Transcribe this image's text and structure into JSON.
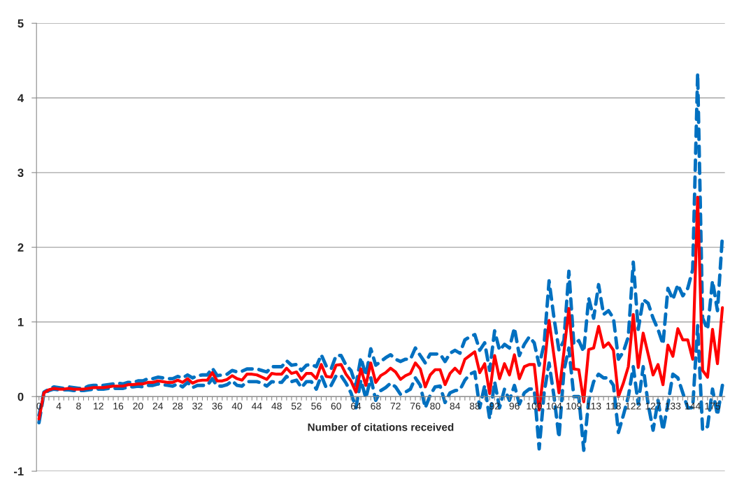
{
  "chart_data": {
    "type": "line",
    "xlabel": "Number of citations received",
    "categories": [
      "0",
      null,
      null,
      null,
      "4",
      null,
      null,
      null,
      "8",
      null,
      null,
      null,
      "12",
      null,
      null,
      null,
      "16",
      null,
      null,
      null,
      "20",
      null,
      null,
      null,
      "24",
      null,
      null,
      null,
      "28",
      null,
      null,
      null,
      "32",
      null,
      null,
      null,
      "36",
      null,
      null,
      null,
      "40",
      null,
      null,
      null,
      "44",
      null,
      null,
      null,
      "48",
      null,
      null,
      null,
      "52",
      null,
      null,
      null,
      "56",
      null,
      null,
      null,
      "60",
      null,
      null,
      null,
      "64",
      null,
      null,
      null,
      "68",
      null,
      null,
      null,
      "72",
      null,
      null,
      null,
      "76",
      null,
      null,
      null,
      "80",
      null,
      null,
      null,
      "84",
      null,
      null,
      null,
      "88",
      null,
      null,
      null,
      "92",
      null,
      null,
      null,
      "96",
      null,
      null,
      null,
      "100",
      null,
      null,
      null,
      "104",
      null,
      null,
      null,
      "109",
      null,
      null,
      null,
      "113",
      null,
      null,
      null,
      "118",
      null,
      null,
      null,
      "122",
      null,
      null,
      null,
      "127",
      null,
      null,
      null,
      "133",
      null,
      null,
      null,
      "144",
      null,
      null,
      null,
      "175",
      null,
      null
    ],
    "series": [
      {
        "color": "#0070c0",
        "line_style": "dashed",
        "values": [
          -0.25,
          0.06,
          0.1,
          0.13,
          0.12,
          0.11,
          0.13,
          0.12,
          0.11,
          0.11,
          0.14,
          0.15,
          0.15,
          0.15,
          0.16,
          0.17,
          0.18,
          0.17,
          0.19,
          0.19,
          0.21,
          0.21,
          0.24,
          0.24,
          0.26,
          0.25,
          0.24,
          0.24,
          0.27,
          0.25,
          0.29,
          0.25,
          0.28,
          0.29,
          0.29,
          0.38,
          0.28,
          0.29,
          0.3,
          0.35,
          0.33,
          0.34,
          0.37,
          0.37,
          0.37,
          0.35,
          0.33,
          0.4,
          0.4,
          0.4,
          0.48,
          0.42,
          0.43,
          0.35,
          0.42,
          0.43,
          0.4,
          0.56,
          0.41,
          0.37,
          0.55,
          0.55,
          0.42,
          0.35,
          0.15,
          0.52,
          0.28,
          0.64,
          0.42,
          0.47,
          0.52,
          0.56,
          0.5,
          0.47,
          0.5,
          0.5,
          0.65,
          0.55,
          0.45,
          0.57,
          0.57,
          0.57,
          0.47,
          0.58,
          0.62,
          0.58,
          0.76,
          0.8,
          0.83,
          0.62,
          0.72,
          0.35,
          0.88,
          0.62,
          0.7,
          0.65,
          0.92,
          0.55,
          0.7,
          0.8,
          0.72,
          0.42,
          0.7,
          1.55,
          1.05,
          0.62,
          0.75,
          1.68,
          0.7,
          0.75,
          0.6,
          1.32,
          1.05,
          1.5,
          1.1,
          1.15,
          1.05,
          0.5,
          0.6,
          0.8,
          1.8,
          0.9,
          1.3,
          1.25,
          1.05,
          0.9,
          0.7,
          1.45,
          1.3,
          1.5,
          1.35,
          1.45,
          1.7,
          4.33,
          1.05,
          0.9,
          1.55,
          1.15,
          2.15
        ]
      },
      {
        "color": "#0070c0",
        "line_style": "dashed",
        "values": [
          -0.35,
          0.04,
          0.08,
          0.1,
          0.09,
          0.09,
          0.09,
          0.08,
          0.08,
          0.08,
          0.09,
          0.1,
          0.1,
          0.1,
          0.11,
          0.11,
          0.11,
          0.11,
          0.13,
          0.13,
          0.14,
          0.13,
          0.15,
          0.15,
          0.17,
          0.16,
          0.15,
          0.14,
          0.17,
          0.13,
          0.19,
          0.12,
          0.15,
          0.15,
          0.15,
          0.24,
          0.14,
          0.14,
          0.16,
          0.21,
          0.15,
          0.14,
          0.2,
          0.2,
          0.2,
          0.18,
          0.14,
          0.2,
          0.19,
          0.19,
          0.27,
          0.2,
          0.22,
          0.12,
          0.2,
          0.2,
          0.1,
          0.28,
          0.12,
          0.15,
          0.28,
          0.28,
          0.18,
          0.05,
          -0.15,
          0.22,
          -0.02,
          0.25,
          -0.05,
          0.08,
          0.12,
          0.18,
          0.13,
          0.03,
          0.06,
          0.1,
          0.25,
          0.15,
          -0.15,
          0.02,
          0.13,
          0.14,
          -0.08,
          0.05,
          0.08,
          0.09,
          0.22,
          0.3,
          0.33,
          -0.15,
          0.15,
          -0.3,
          0.2,
          -0.15,
          0.1,
          -0.05,
          0.15,
          -0.1,
          0.05,
          0.1,
          0.1,
          -0.7,
          0.05,
          0.45,
          0.0,
          -0.55,
          0.35,
          0.65,
          0.0,
          0.0,
          -0.72,
          -0.05,
          0.2,
          0.3,
          0.25,
          0.25,
          0.15,
          -0.48,
          -0.25,
          0.0,
          0.4,
          -0.1,
          0.4,
          -0.1,
          -0.45,
          -0.05,
          -0.45,
          -0.1,
          0.3,
          0.25,
          0.05,
          -0.15,
          -0.15,
          0.95,
          -0.45,
          -0.4,
          0.1,
          -0.25,
          0.15
        ]
      },
      {
        "color": "#ff0000",
        "line_style": "solid",
        "values": [
          -0.3,
          0.05,
          0.09,
          0.11,
          0.1,
          0.1,
          0.11,
          0.1,
          0.1,
          0.1,
          0.11,
          0.12,
          0.12,
          0.12,
          0.13,
          0.14,
          0.14,
          0.14,
          0.16,
          0.16,
          0.17,
          0.17,
          0.19,
          0.19,
          0.21,
          0.2,
          0.19,
          0.19,
          0.22,
          0.19,
          0.24,
          0.18,
          0.21,
          0.22,
          0.22,
          0.32,
          0.21,
          0.21,
          0.23,
          0.28,
          0.24,
          0.22,
          0.3,
          0.3,
          0.29,
          0.26,
          0.23,
          0.31,
          0.3,
          0.3,
          0.38,
          0.31,
          0.33,
          0.23,
          0.31,
          0.31,
          0.24,
          0.43,
          0.27,
          0.26,
          0.42,
          0.43,
          0.3,
          0.21,
          0.06,
          0.37,
          0.15,
          0.45,
          0.19,
          0.28,
          0.32,
          0.38,
          0.33,
          0.23,
          0.28,
          0.31,
          0.45,
          0.37,
          0.13,
          0.29,
          0.36,
          0.36,
          0.16,
          0.31,
          0.38,
          0.31,
          0.5,
          0.55,
          0.6,
          0.32,
          0.44,
          0.04,
          0.55,
          0.24,
          0.44,
          0.29,
          0.56,
          0.24,
          0.4,
          0.43,
          0.43,
          -0.18,
          0.38,
          1.02,
          0.54,
          0.05,
          0.6,
          1.18,
          0.37,
          0.36,
          -0.07,
          0.63,
          0.65,
          0.94,
          0.66,
          0.72,
          0.62,
          0.0,
          0.18,
          0.4,
          1.1,
          0.39,
          0.85,
          0.57,
          0.29,
          0.43,
          0.16,
          0.69,
          0.54,
          0.91,
          0.76,
          0.76,
          0.5,
          2.67,
          0.35,
          0.26,
          0.9,
          0.44,
          1.19
        ]
      }
    ],
    "ylim": [
      -1,
      5
    ],
    "yticks": [
      -1,
      0,
      1,
      2,
      3,
      4,
      5
    ],
    "grid": "y",
    "legend": false
  }
}
